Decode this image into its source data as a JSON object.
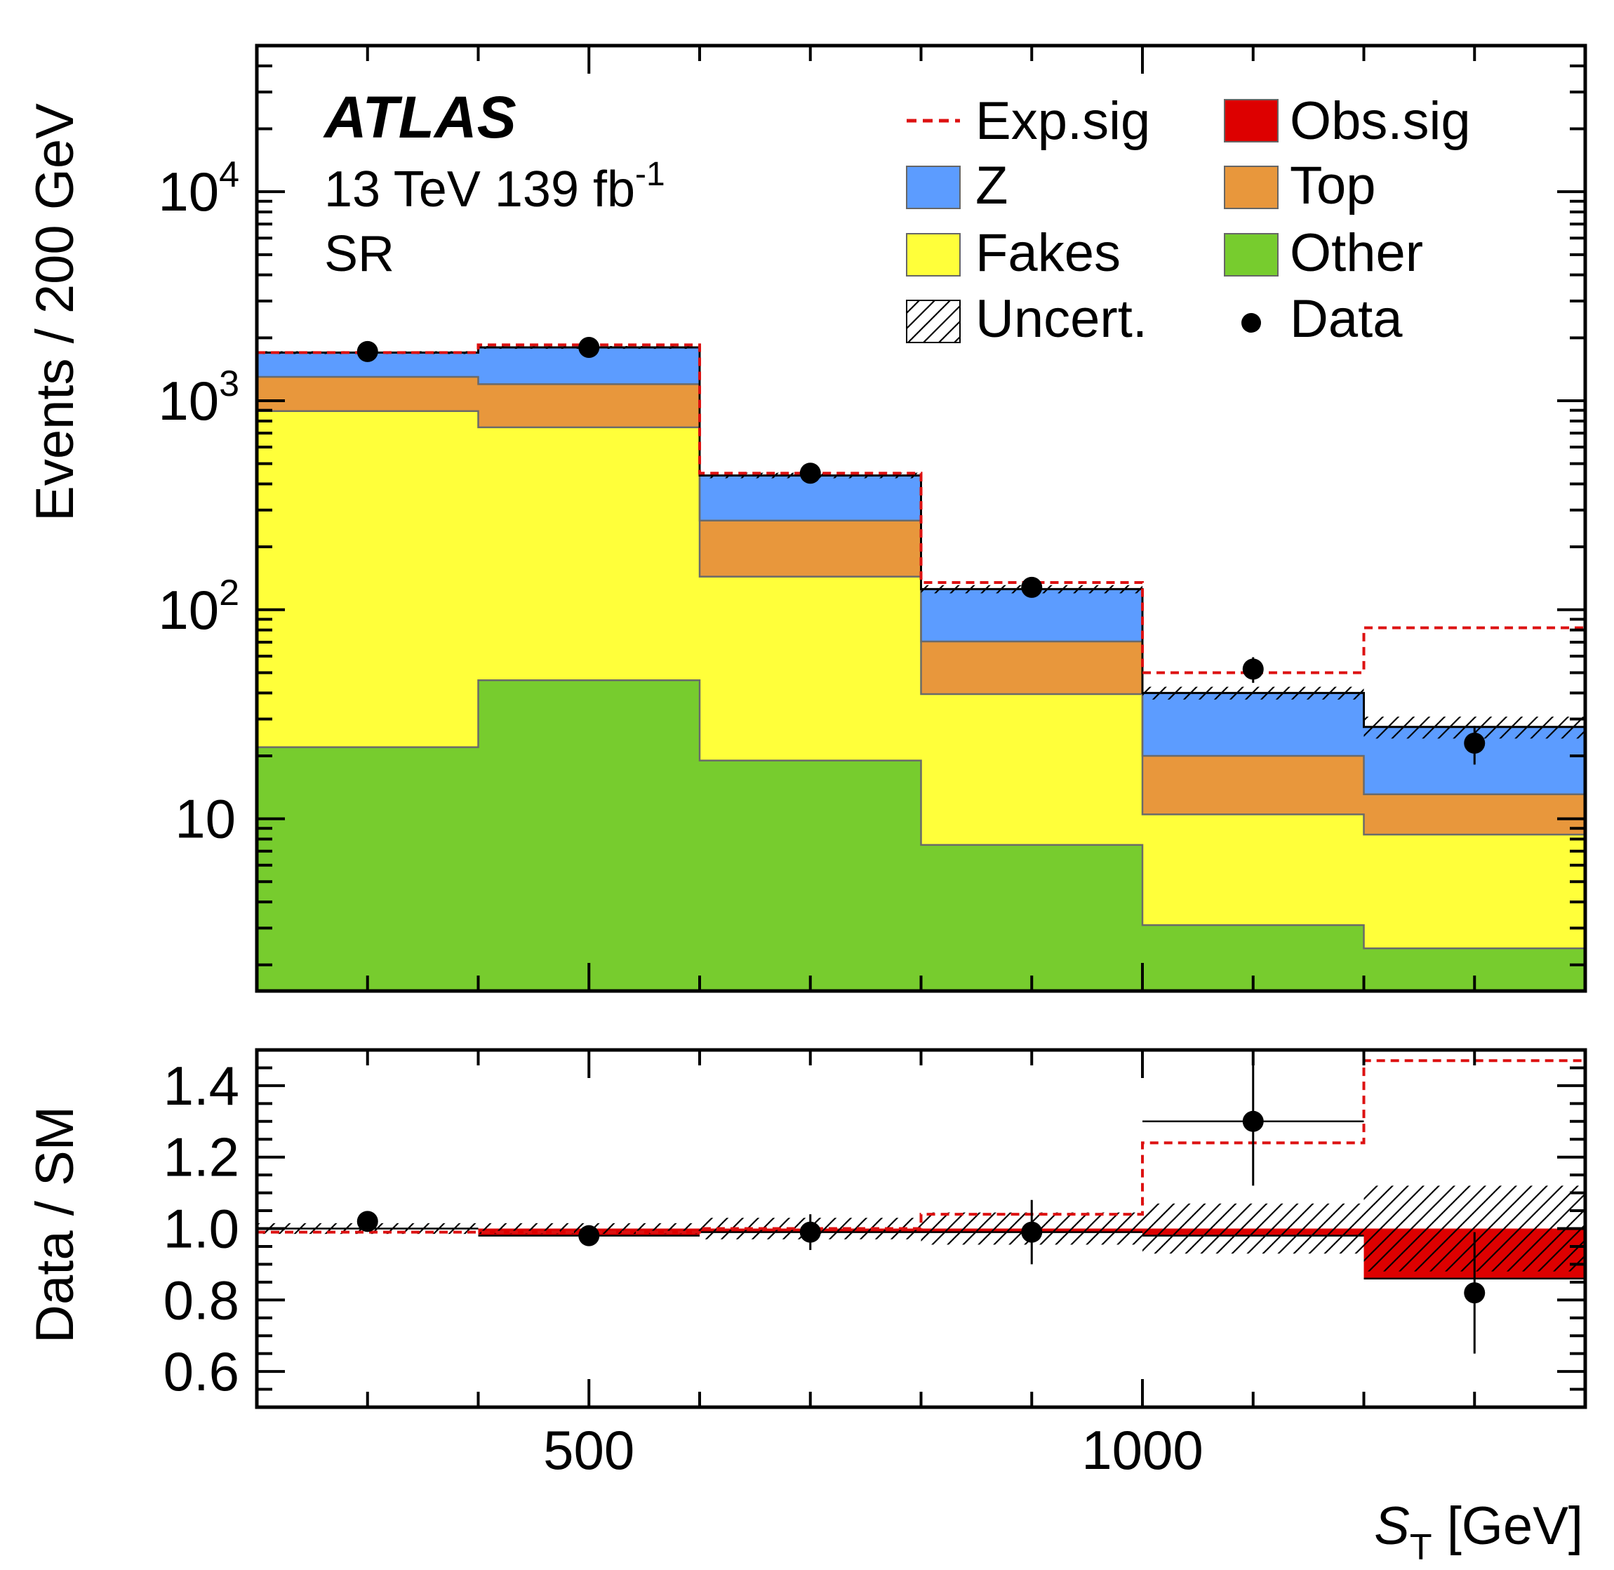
{
  "annotations": {
    "experiment": "ATLAS",
    "energy_lumi_prefix": "13 TeV 139 fb",
    "lumi_exponent": "-1",
    "region": "SR"
  },
  "main_ylabel": "Events / 200 GeV",
  "ratio_ylabel": "Data / SM",
  "xlabel_symbol": "S",
  "xlabel_subscript": "T",
  "xlabel_unit": " [GeV]",
  "legend": {
    "exp_sig": "Exp.sig",
    "obs_sig": "Obs.sig",
    "z": "Z",
    "top": "Top",
    "fakes": "Fakes",
    "other": "Other",
    "uncert": "Uncert.",
    "data": "Data"
  },
  "colors": {
    "z": "#5c9cff",
    "top": "#e8973c",
    "fakes": "#ffff3a",
    "other": "#77cc2e",
    "exp_sig": "#dd1111",
    "obs_sig": "#dd0000"
  },
  "chart_data": {
    "type": "bar",
    "stacked": true,
    "log_y": true,
    "xlim": [
      200,
      1400
    ],
    "ylim": [
      1.5,
      50000
    ],
    "ratio_ylim": [
      0.5,
      1.5
    ],
    "bin_edges": [
      200,
      400,
      600,
      800,
      1000,
      1200,
      1400
    ],
    "series": [
      {
        "name": "Other",
        "values": [
          22,
          46,
          19,
          7.5,
          3.1,
          2.4
        ]
      },
      {
        "name": "Fakes",
        "values": [
          870,
          700,
          125,
          32,
          7.4,
          6.0
        ]
      },
      {
        "name": "Top",
        "values": [
          408,
          454,
          123,
          31,
          9.5,
          4.7
        ]
      },
      {
        "name": "Z",
        "values": [
          400,
          600,
          172,
          55,
          20,
          14.4
        ]
      }
    ],
    "exp_sig_total": [
      1700,
      1850,
      450,
      135,
      50,
      82
    ],
    "data": {
      "name": "Data",
      "x": [
        300,
        500,
        700,
        900,
        1100,
        1300
      ],
      "y": [
        1720,
        1800,
        450,
        128,
        52,
        23
      ],
      "y_err_rel": [
        0.024,
        0.024,
        0.047,
        0.088,
        0.14,
        0.21
      ]
    },
    "uncert_rel": [
      0.015,
      0.015,
      0.03,
      0.045,
      0.07,
      0.12
    ],
    "ratio": {
      "data": [
        1.02,
        0.98,
        0.99,
        0.99,
        1.3,
        0.82
      ],
      "data_err": [
        0.025,
        0.025,
        0.05,
        0.09,
        0.18,
        0.17
      ],
      "exp_sig": [
        0.99,
        0.99,
        1.0,
        1.04,
        1.24,
        1.47
      ],
      "obs_sig": [
        1.0,
        0.98,
        0.99,
        0.99,
        0.98,
        0.86
      ],
      "uncert_rel": [
        0.015,
        0.015,
        0.03,
        0.045,
        0.07,
        0.12
      ],
      "yticks": [
        "0.6",
        "0.8",
        "1.0",
        "1.2",
        "1.4"
      ]
    },
    "yticks_main": [
      {
        "value": 10,
        "base": "10",
        "exp": ""
      },
      {
        "value": 100,
        "base": "10",
        "exp": "2"
      },
      {
        "value": 1000,
        "base": "10",
        "exp": "3"
      },
      {
        "value": 10000,
        "base": "10",
        "exp": "4"
      }
    ],
    "xticks": [
      "500",
      "1000"
    ]
  }
}
